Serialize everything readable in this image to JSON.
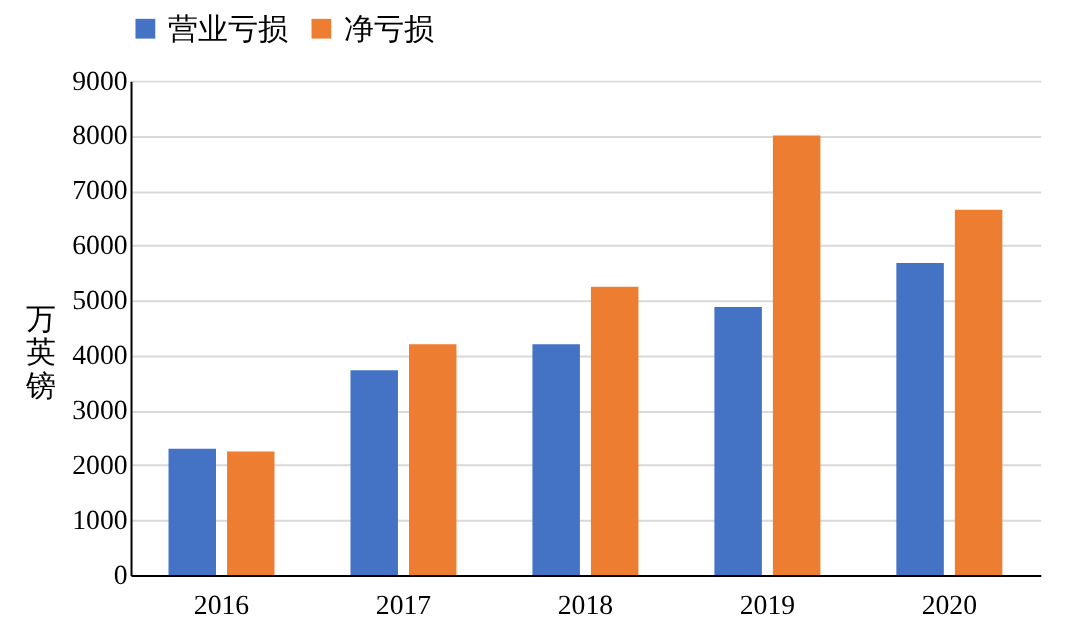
{
  "chart_data": {
    "type": "bar",
    "ylabel": "万英镑",
    "categories": [
      "2016",
      "2017",
      "2018",
      "2019",
      "2020"
    ],
    "series": [
      {
        "name": "营业亏损",
        "color": "#4472c4",
        "values": [
          2300,
          3730,
          4200,
          4880,
          5680
        ]
      },
      {
        "name": "净亏损",
        "color": "#ed7d31",
        "values": [
          2250,
          4200,
          5250,
          8000,
          6650
        ]
      }
    ],
    "ylim": [
      0,
      9000
    ],
    "yticks": [
      0,
      1000,
      2000,
      3000,
      4000,
      5000,
      6000,
      7000,
      8000,
      9000
    ],
    "grid": "y",
    "legend": "top"
  }
}
